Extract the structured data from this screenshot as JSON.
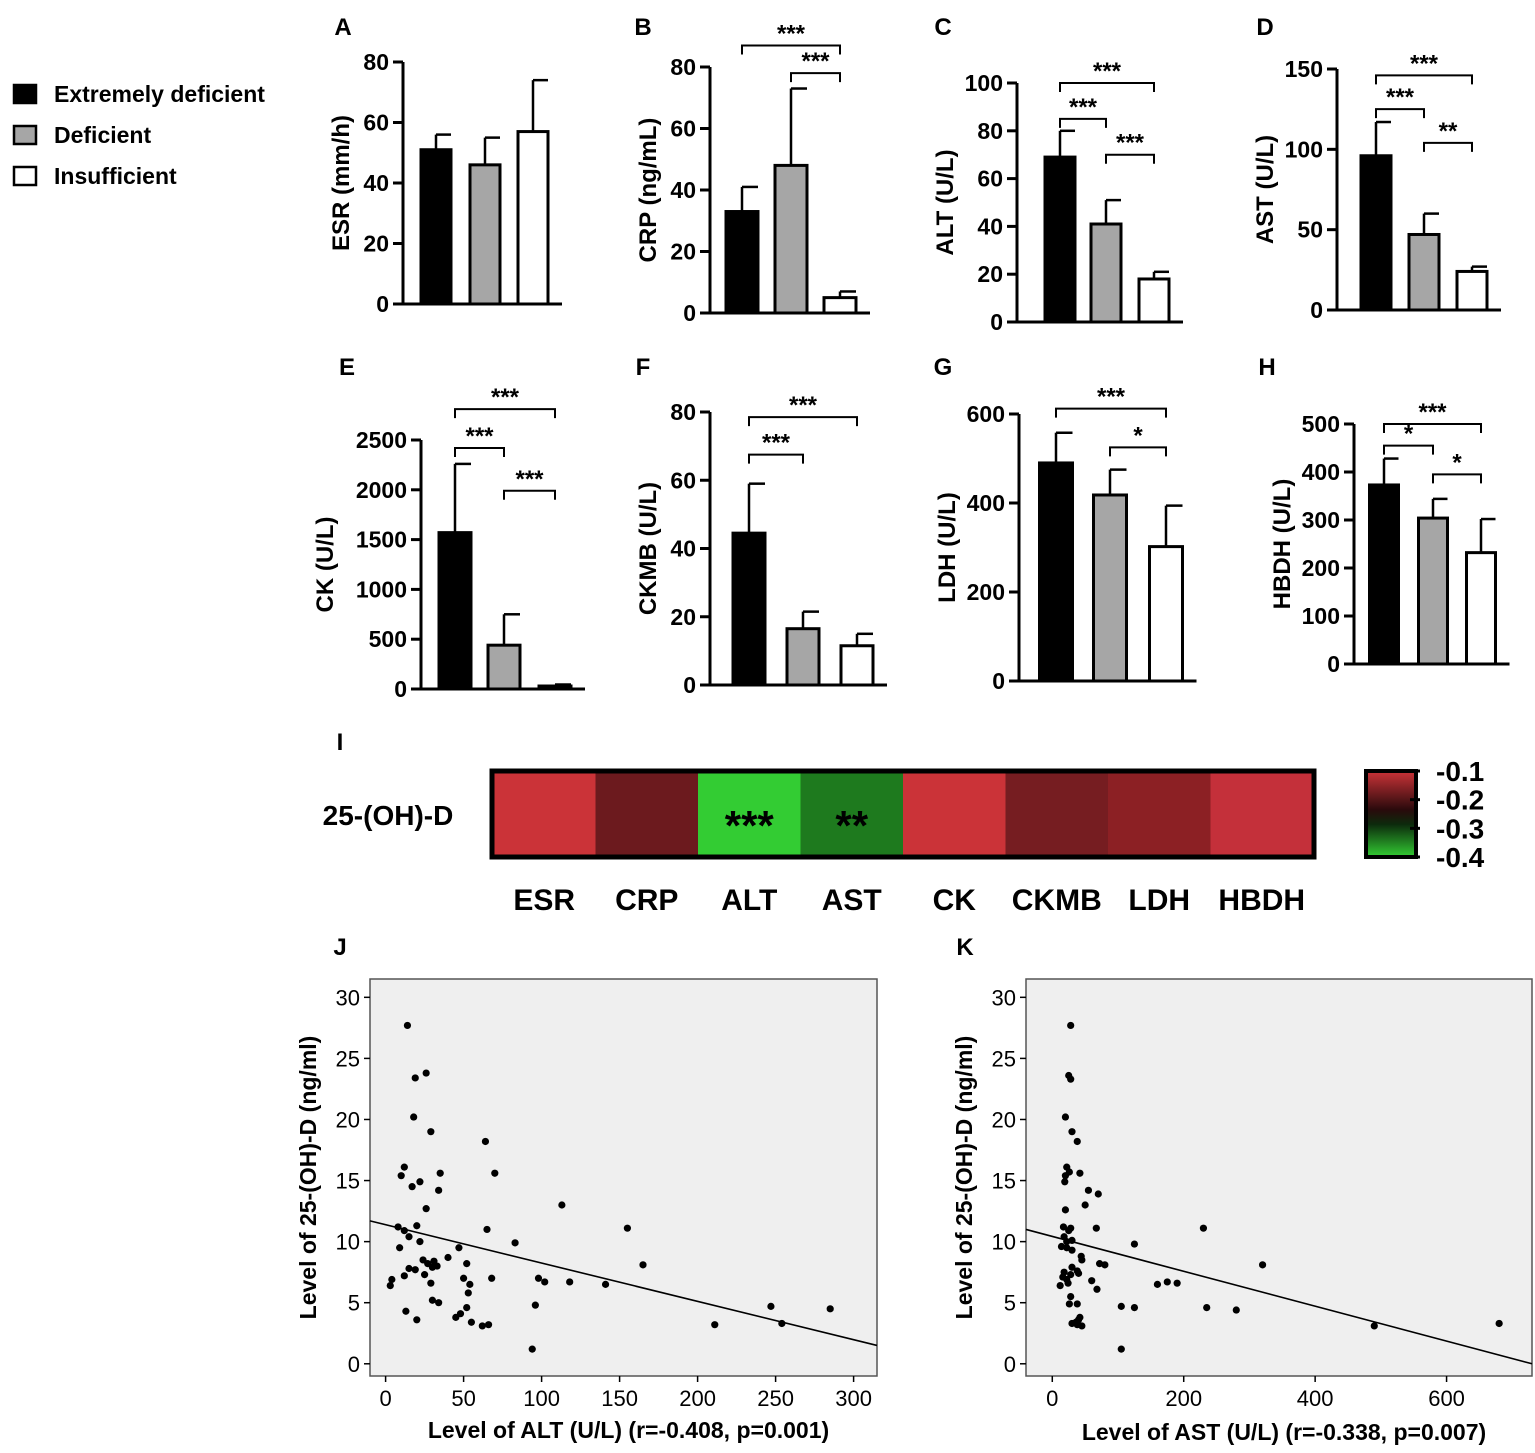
{
  "legend": {
    "items": [
      {
        "label": "Extremely deficient",
        "color": "#000000"
      },
      {
        "label": "Deficient",
        "color": "#a6a6a6"
      },
      {
        "label": "Insufficient",
        "color": "#ffffff"
      }
    ]
  },
  "colors": {
    "extreme": "#000000",
    "deficient": "#a6a6a6",
    "insufficient": "#ffffff",
    "scatter_bg": "#efefef"
  },
  "chart_data": [
    {
      "id": "A",
      "type": "bar",
      "panel_label": "A",
      "ylabel": "ESR (mm/h)",
      "categories": [
        "Extremely deficient",
        "Deficient",
        "Insufficient"
      ],
      "values": [
        51,
        46,
        57
      ],
      "errors": [
        5,
        9,
        17
      ],
      "ylim": [
        0,
        80
      ],
      "yticks": [
        "0",
        "20",
        "40",
        "60",
        "80"
      ],
      "tick_values": [
        0,
        20,
        40,
        60,
        80
      ],
      "significance": []
    },
    {
      "id": "B",
      "type": "bar",
      "panel_label": "B",
      "ylabel": "CRP (ng/mL)",
      "categories": [
        "Extremely deficient",
        "Deficient",
        "Insufficient"
      ],
      "values": [
        33,
        48,
        5
      ],
      "errors": [
        8,
        25,
        2
      ],
      "ylim": [
        0,
        80
      ],
      "yticks": [
        "0",
        "20",
        "40",
        "60",
        "80"
      ],
      "tick_values": [
        0,
        20,
        40,
        60,
        80
      ],
      "significance": [
        {
          "from": 0,
          "to": 2,
          "label": "***",
          "level": 87
        },
        {
          "from": 1,
          "to": 2,
          "label": "***",
          "level": 78
        }
      ]
    },
    {
      "id": "C",
      "type": "bar",
      "panel_label": "C",
      "ylabel": "ALT (U/L)",
      "categories": [
        "Extremely deficient",
        "Deficient",
        "Insufficient"
      ],
      "values": [
        69,
        41,
        18
      ],
      "errors": [
        11,
        10,
        3
      ],
      "ylim": [
        0,
        100
      ],
      "yticks": [
        "0",
        "20",
        "40",
        "60",
        "80",
        "100"
      ],
      "tick_values": [
        0,
        20,
        40,
        60,
        80,
        100
      ],
      "significance": [
        {
          "from": 0,
          "to": 2,
          "label": "***",
          "level": 100
        },
        {
          "from": 0,
          "to": 1,
          "label": "***",
          "level": 85
        },
        {
          "from": 1,
          "to": 2,
          "label": "***",
          "level": 70
        }
      ]
    },
    {
      "id": "D",
      "type": "bar",
      "panel_label": "D",
      "ylabel": "AST (U/L)",
      "categories": [
        "Extremely deficient",
        "Deficient",
        "Insufficient"
      ],
      "values": [
        96,
        47,
        24
      ],
      "errors": [
        21,
        13,
        3
      ],
      "ylim": [
        0,
        150
      ],
      "yticks": [
        "0",
        "50",
        "100",
        "150"
      ],
      "tick_values": [
        0,
        50,
        100,
        150
      ],
      "significance": [
        {
          "from": 0,
          "to": 2,
          "label": "***",
          "level": 146
        },
        {
          "from": 0,
          "to": 1,
          "label": "***",
          "level": 125
        },
        {
          "from": 1,
          "to": 2,
          "label": "**",
          "level": 104
        }
      ]
    },
    {
      "id": "E",
      "type": "bar",
      "panel_label": "E",
      "ylabel": "CK (U/L)",
      "categories": [
        "Extremely deficient",
        "Deficient",
        "Insufficient"
      ],
      "values": [
        1570,
        440,
        30
      ],
      "errors": [
        690,
        310,
        15
      ],
      "ylim": [
        0,
        2500
      ],
      "yticks": [
        "0",
        "500",
        "1000",
        "1500",
        "2000",
        "2500"
      ],
      "tick_values": [
        0,
        500,
        1000,
        1500,
        2000,
        2500
      ],
      "significance": [
        {
          "from": 0,
          "to": 2,
          "label": "***",
          "level": 2810
        },
        {
          "from": 0,
          "to": 1,
          "label": "***",
          "level": 2420
        },
        {
          "from": 1,
          "to": 2,
          "label": "***",
          "level": 1990
        }
      ]
    },
    {
      "id": "F",
      "type": "bar",
      "panel_label": "F",
      "ylabel": "CKMB (U/L)",
      "categories": [
        "Extremely deficient",
        "Deficient",
        "Insufficient"
      ],
      "values": [
        44.5,
        16.5,
        11.5
      ],
      "errors": [
        14.5,
        5,
        3.5
      ],
      "ylim": [
        0,
        80
      ],
      "yticks": [
        "0",
        "20",
        "40",
        "60",
        "80"
      ],
      "tick_values": [
        0,
        20,
        40,
        60,
        80
      ],
      "significance": [
        {
          "from": 0,
          "to": 2,
          "label": "***",
          "level": 78.5
        },
        {
          "from": 0,
          "to": 1,
          "label": "***",
          "level": 67.5
        }
      ]
    },
    {
      "id": "G",
      "type": "bar",
      "panel_label": "G",
      "ylabel": "LDH (U/L)",
      "categories": [
        "Extremely deficient",
        "Deficient",
        "Insufficient"
      ],
      "values": [
        490,
        418,
        302
      ],
      "errors": [
        68,
        57,
        92
      ],
      "ylim": [
        0,
        600
      ],
      "yticks": [
        "0",
        "200",
        "400",
        "600"
      ],
      "tick_values": [
        0,
        200,
        400,
        600
      ],
      "significance": [
        {
          "from": 0,
          "to": 2,
          "label": "***",
          "level": 612
        },
        {
          "from": 1,
          "to": 2,
          "label": "*",
          "level": 525
        }
      ]
    },
    {
      "id": "H",
      "type": "bar",
      "panel_label": "H",
      "ylabel": "HBDH (U/L)",
      "categories": [
        "Extremely deficient",
        "Deficient",
        "Insufficient"
      ],
      "values": [
        373,
        304,
        232
      ],
      "errors": [
        55,
        40,
        70
      ],
      "ylim": [
        0,
        500
      ],
      "yticks": [
        "0",
        "100",
        "200",
        "300",
        "400",
        "500"
      ],
      "tick_values": [
        0,
        100,
        200,
        300,
        400,
        500
      ],
      "significance": [
        {
          "from": 0,
          "to": 2,
          "label": "***",
          "level": 500
        },
        {
          "from": 0,
          "to": 1,
          "label": "*",
          "level": 455
        },
        {
          "from": 1,
          "to": 2,
          "label": "*",
          "level": 395
        }
      ]
    },
    {
      "id": "I",
      "type": "heatmap",
      "panel_label": "I",
      "row_label": "25-(OH)-D",
      "columns": [
        "ESR",
        "CRP",
        "ALT",
        "AST",
        "CK",
        "CKMB",
        "LDH",
        "HBDH"
      ],
      "values": [
        -0.1,
        -0.2,
        -0.408,
        -0.338,
        -0.1,
        -0.2,
        -0.18,
        -0.12
      ],
      "cell_colors": [
        "#cb3338",
        "#6c1a1e",
        "#33cc33",
        "#1e7a1e",
        "#cb3338",
        "#761d21",
        "#8c2024",
        "#c4303a"
      ],
      "annotations": [
        "",
        "",
        "***",
        "**",
        "",
        "",
        "",
        ""
      ],
      "colorbar": {
        "ticks": [
          "-0.1",
          "-0.2",
          "-0.3",
          "-0.4"
        ],
        "tick_values": [
          -0.1,
          -0.2,
          -0.3,
          -0.4
        ],
        "range": [
          -0.1,
          -0.4
        ]
      }
    },
    {
      "id": "J",
      "type": "scatter",
      "panel_label": "J",
      "xlabel": "Level of ALT (U/L) (r=-0.408, p=0.001)",
      "ylabel": "Level of 25-(OH)-D (ng/ml)",
      "xlim": [
        -10,
        315
      ],
      "ylim": [
        -1,
        31.5
      ],
      "xticks": [
        "0",
        "50",
        "100",
        "150",
        "200",
        "250",
        "300"
      ],
      "xtick_values": [
        0,
        50,
        100,
        150,
        200,
        250,
        300
      ],
      "yticks": [
        "0",
        "5",
        "10",
        "15",
        "20",
        "25",
        "30"
      ],
      "ytick_values": [
        0,
        5,
        10,
        15,
        20,
        25,
        30
      ],
      "points": [
        [
          14,
          27.7
        ],
        [
          19,
          23.4
        ],
        [
          26,
          23.8
        ],
        [
          18,
          20.2
        ],
        [
          29,
          19
        ],
        [
          12,
          16.1
        ],
        [
          10,
          15.4
        ],
        [
          17,
          14.5
        ],
        [
          22,
          14.9
        ],
        [
          35,
          15.6
        ],
        [
          34,
          14.2
        ],
        [
          26,
          12.7
        ],
        [
          8,
          11.2
        ],
        [
          12,
          10.9
        ],
        [
          20,
          11.3
        ],
        [
          15,
          10.4
        ],
        [
          22,
          10
        ],
        [
          9,
          9.5
        ],
        [
          4,
          6.9
        ],
        [
          3,
          6.4
        ],
        [
          12,
          7.2
        ],
        [
          15,
          7.8
        ],
        [
          19,
          7.7
        ],
        [
          24,
          8.5
        ],
        [
          27,
          8.2
        ],
        [
          30,
          7.9
        ],
        [
          31,
          8.4
        ],
        [
          33,
          8
        ],
        [
          40,
          8.7
        ],
        [
          52,
          8.2
        ],
        [
          25,
          7.3
        ],
        [
          29,
          6.6
        ],
        [
          30,
          5.2
        ],
        [
          34,
          5
        ],
        [
          47,
          9.5
        ],
        [
          50,
          7
        ],
        [
          53,
          5.8
        ],
        [
          54,
          6.5
        ],
        [
          52,
          4.6
        ],
        [
          48,
          4.1
        ],
        [
          45,
          3.8
        ],
        [
          55,
          3.4
        ],
        [
          62,
          3.1
        ],
        [
          66,
          3.2
        ],
        [
          13,
          4.3
        ],
        [
          20,
          3.6
        ],
        [
          68,
          7
        ],
        [
          65,
          11
        ],
        [
          64,
          18.2
        ],
        [
          70,
          15.6
        ],
        [
          83,
          9.9
        ],
        [
          98,
          7
        ],
        [
          102,
          6.7
        ],
        [
          96,
          4.8
        ],
        [
          94,
          1.2
        ],
        [
          118,
          6.7
        ],
        [
          113,
          13
        ],
        [
          141,
          6.5
        ],
        [
          155,
          11.1
        ],
        [
          165,
          8.1
        ],
        [
          211,
          3.2
        ],
        [
          247,
          4.7
        ],
        [
          254,
          3.3
        ],
        [
          285,
          4.5
        ]
      ],
      "regression": {
        "x": [
          -10,
          315
        ],
        "y": [
          11.7,
          1.5
        ]
      }
    },
    {
      "id": "K",
      "type": "scatter",
      "panel_label": "K",
      "xlabel": "Level of AST (U/L) (r=-0.338, p=0.007)",
      "ylabel": "Level of 25-(OH)-D (ng/ml)",
      "xlim": [
        -40,
        730
      ],
      "ylim": [
        -1,
        31.5
      ],
      "xticks": [
        "0",
        "200",
        "400",
        "600"
      ],
      "xtick_values": [
        0,
        200,
        400,
        600
      ],
      "yticks": [
        "0",
        "5",
        "10",
        "15",
        "20",
        "25",
        "30"
      ],
      "ytick_values": [
        0,
        5,
        10,
        15,
        20,
        25,
        30
      ],
      "points": [
        [
          28,
          27.7
        ],
        [
          25,
          23.6
        ],
        [
          28,
          23.3
        ],
        [
          20,
          20.2
        ],
        [
          30,
          19
        ],
        [
          38,
          18.2
        ],
        [
          22,
          16.1
        ],
        [
          20,
          15.4
        ],
        [
          26,
          15.7
        ],
        [
          42,
          15.6
        ],
        [
          19,
          14.9
        ],
        [
          55,
          14.2
        ],
        [
          70,
          13.9
        ],
        [
          50,
          13
        ],
        [
          20,
          12.6
        ],
        [
          28,
          11.1
        ],
        [
          67,
          11.1
        ],
        [
          17,
          11.2
        ],
        [
          25,
          10.9
        ],
        [
          18,
          10.4
        ],
        [
          22,
          10
        ],
        [
          30,
          10.1
        ],
        [
          14,
          9.6
        ],
        [
          22,
          9.5
        ],
        [
          30,
          9.3
        ],
        [
          44,
          8.8
        ],
        [
          80,
          8.1
        ],
        [
          72,
          8.2
        ],
        [
          125,
          9.8
        ],
        [
          230,
          11.1
        ],
        [
          320,
          8.1
        ],
        [
          18,
          7.5
        ],
        [
          16,
          7.1
        ],
        [
          12,
          6.4
        ],
        [
          22,
          6.9
        ],
        [
          24,
          6.6
        ],
        [
          28,
          7.3
        ],
        [
          30,
          7.9
        ],
        [
          38,
          7.6
        ],
        [
          45,
          8.5
        ],
        [
          40,
          7.4
        ],
        [
          60,
          6.8
        ],
        [
          68,
          6.1
        ],
        [
          160,
          6.5
        ],
        [
          175,
          6.7
        ],
        [
          190,
          6.6
        ],
        [
          28,
          5.5
        ],
        [
          26,
          4.9
        ],
        [
          38,
          4.9
        ],
        [
          105,
          4.7
        ],
        [
          125,
          4.6
        ],
        [
          40,
          3.6
        ],
        [
          36,
          3.4
        ],
        [
          42,
          3.8
        ],
        [
          45,
          3.1
        ],
        [
          38,
          3.2
        ],
        [
          30,
          3.3
        ],
        [
          235,
          4.6
        ],
        [
          280,
          4.4
        ],
        [
          105,
          1.2
        ],
        [
          490,
          3.1
        ],
        [
          680,
          3.3
        ]
      ],
      "regression": {
        "x": [
          -40,
          730
        ],
        "y": [
          11,
          0
        ]
      }
    }
  ]
}
